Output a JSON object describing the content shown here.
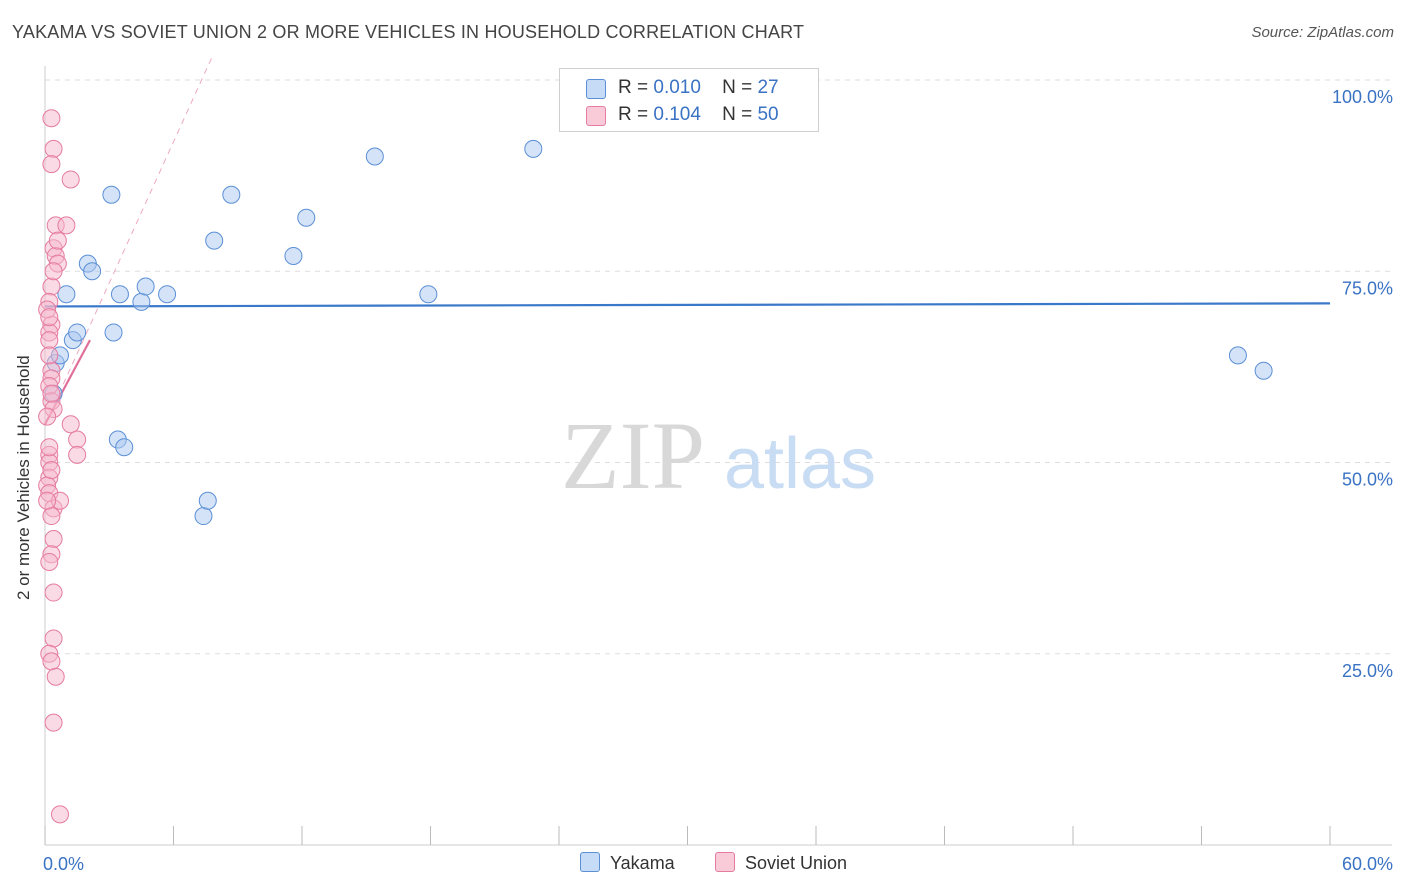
{
  "header": {
    "title": "YAKAMA VS SOVIET UNION 2 OR MORE VEHICLES IN HOUSEHOLD CORRELATION CHART",
    "source": "Source: ZipAtlas.com"
  },
  "legend": {
    "rows": [
      {
        "r_label": "R =",
        "r_value": "0.010",
        "n_label": "N =",
        "n_value": "27"
      },
      {
        "r_label": "R =",
        "r_value": "0.104",
        "n_label": "N =",
        "n_value": "50"
      }
    ]
  },
  "bottom_legend": [
    "Yakama",
    "Soviet Union"
  ],
  "watermark": {
    "part1": "ZIP",
    "part2": "atlas"
  },
  "colors": {
    "yakama_fill": "#a9c8f0",
    "yakama_stroke": "#5b8fd6",
    "yakama_line": "#3a78c9",
    "soviet_fill": "#f6b8cb",
    "soviet_stroke": "#e57ba0",
    "soviet_line": "#e0709a",
    "tick_label": "#3a72c4",
    "grid": "#dddddd"
  },
  "chart_data": {
    "type": "scatter",
    "ylabel": "2 or more Vehicles in Household",
    "xlim": [
      0,
      60
    ],
    "ylim": [
      0,
      100
    ],
    "x_tick_labels": [
      "0.0%",
      "60.0%"
    ],
    "y_ticks": [
      25,
      50,
      75,
      100
    ],
    "y_tick_labels": [
      "25.0%",
      "50.0%",
      "75.0%",
      "100.0%"
    ],
    "grid": true,
    "series": [
      {
        "name": "Yakama",
        "points": [
          [
            0.4,
            59
          ],
          [
            0.5,
            63
          ],
          [
            0.7,
            64
          ],
          [
            1.0,
            72
          ],
          [
            1.3,
            66
          ],
          [
            1.5,
            67
          ],
          [
            2.0,
            76
          ],
          [
            2.2,
            75
          ],
          [
            3.1,
            85
          ],
          [
            3.2,
            67
          ],
          [
            3.4,
            53
          ],
          [
            3.7,
            52
          ],
          [
            3.5,
            72
          ],
          [
            4.5,
            71
          ],
          [
            4.7,
            73
          ],
          [
            5.7,
            72
          ],
          [
            7.4,
            43
          ],
          [
            7.6,
            45
          ],
          [
            7.9,
            79
          ],
          [
            8.7,
            85
          ],
          [
            11.6,
            77
          ],
          [
            12.2,
            82
          ],
          [
            15.4,
            90
          ],
          [
            17.9,
            72
          ],
          [
            22.8,
            91
          ],
          [
            55.7,
            64
          ],
          [
            56.9,
            62
          ]
        ],
        "trend": {
          "x": [
            0,
            60
          ],
          "y": [
            70.4,
            70.8
          ]
        }
      },
      {
        "name": "Soviet Union",
        "points": [
          [
            0.3,
            95
          ],
          [
            0.4,
            91
          ],
          [
            0.3,
            89
          ],
          [
            1.2,
            87
          ],
          [
            0.5,
            81
          ],
          [
            1.0,
            81
          ],
          [
            0.4,
            78
          ],
          [
            0.5,
            77
          ],
          [
            0.6,
            76
          ],
          [
            0.3,
            73
          ],
          [
            0.2,
            71
          ],
          [
            0.3,
            68
          ],
          [
            0.2,
            67
          ],
          [
            0.2,
            66
          ],
          [
            0.3,
            62
          ],
          [
            0.3,
            61
          ],
          [
            0.2,
            60
          ],
          [
            0.3,
            58
          ],
          [
            0.4,
            57
          ],
          [
            0.1,
            56
          ],
          [
            1.2,
            55
          ],
          [
            1.5,
            53
          ],
          [
            1.5,
            51
          ],
          [
            0.2,
            51
          ],
          [
            0.2,
            50
          ],
          [
            0.2,
            48
          ],
          [
            0.1,
            47
          ],
          [
            0.2,
            46
          ],
          [
            0.4,
            44
          ],
          [
            0.7,
            45
          ],
          [
            0.3,
            43
          ],
          [
            0.4,
            40
          ],
          [
            0.3,
            38
          ],
          [
            0.2,
            37
          ],
          [
            0.4,
            33
          ],
          [
            0.4,
            27
          ],
          [
            0.2,
            25
          ],
          [
            0.3,
            24
          ],
          [
            0.5,
            22
          ],
          [
            0.4,
            16
          ],
          [
            0.7,
            4
          ],
          [
            0.1,
            70
          ],
          [
            0.2,
            64
          ],
          [
            0.3,
            49
          ],
          [
            0.1,
            45
          ],
          [
            0.2,
            69
          ],
          [
            0.3,
            59
          ],
          [
            0.4,
            75
          ],
          [
            0.6,
            79
          ],
          [
            0.2,
            52
          ]
        ],
        "trend": {
          "x": [
            0,
            2.1
          ],
          "y": [
            55,
            66
          ]
        },
        "trend_extended": {
          "x": [
            0,
            7.8
          ],
          "y": [
            55,
            103
          ]
        }
      }
    ]
  }
}
